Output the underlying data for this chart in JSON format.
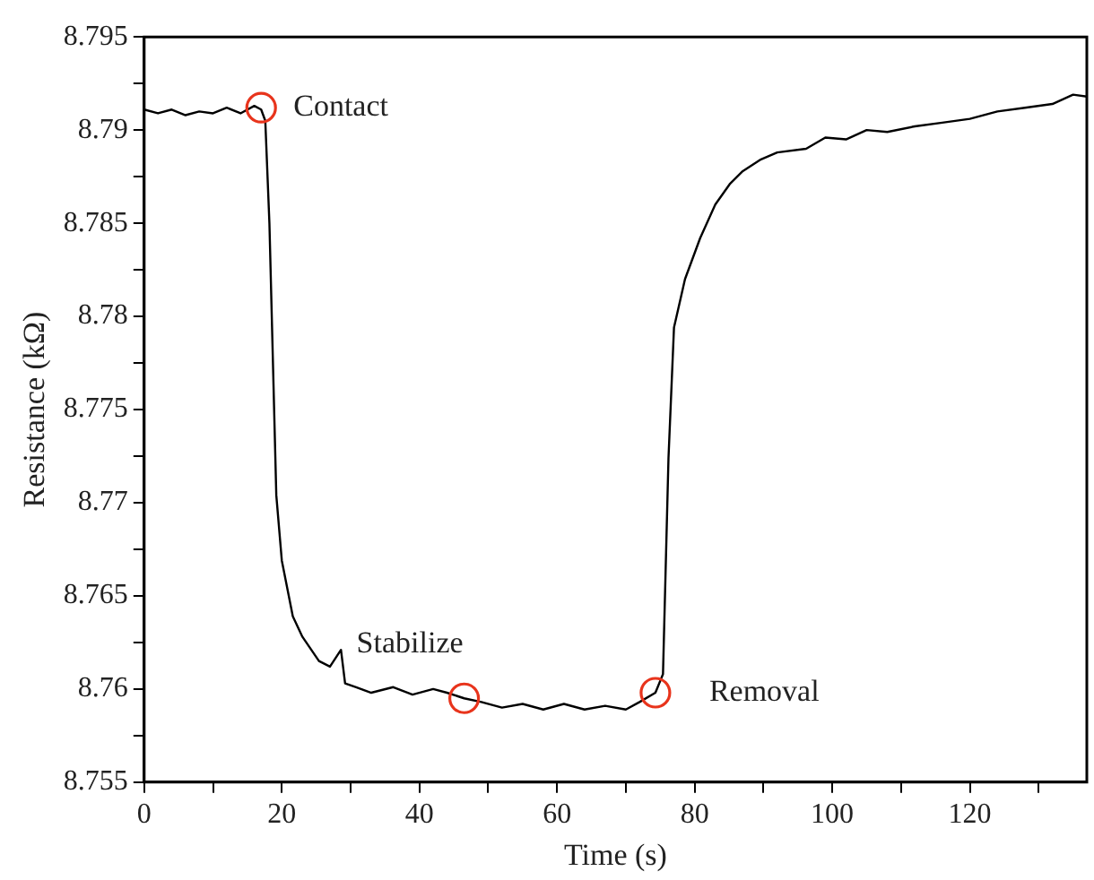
{
  "chart_data": {
    "type": "line",
    "xlabel": "Time (s)",
    "ylabel": "Resistance (kΩ)",
    "grid": false,
    "legend": false,
    "marker": "none",
    "line_style": "solid",
    "xlim": [
      0,
      137
    ],
    "ylim": [
      8.755,
      8.795
    ],
    "xticks": [
      0,
      {
        "value": 10,
        "label": null
      },
      20,
      {
        "value": 30,
        "label": null
      },
      40,
      {
        "value": 50,
        "label": null
      },
      60,
      {
        "value": 70,
        "label": null
      },
      80,
      {
        "value": 90,
        "label": null
      },
      100,
      {
        "value": 110,
        "label": null
      },
      120,
      {
        "value": 130,
        "label": null
      }
    ],
    "yticks": [
      8.755,
      {
        "value": 8.7575,
        "label": null
      },
      8.76,
      {
        "value": 8.7625,
        "label": null
      },
      8.765,
      {
        "value": 8.7675,
        "label": null
      },
      8.77,
      {
        "value": 8.7725,
        "label": null
      },
      8.775,
      {
        "value": 8.7775,
        "label": null
      },
      8.78,
      {
        "value": 8.7825,
        "label": null
      },
      8.785,
      {
        "value": 8.7875,
        "label": null
      },
      8.79,
      {
        "value": 8.7925,
        "label": null
      },
      8.795
    ],
    "series": [
      {
        "color": "#000000",
        "x": [
          0,
          2,
          4,
          6,
          8,
          10,
          12,
          14,
          16,
          17,
          17.6,
          18.2,
          19.2,
          20,
          21.6,
          23,
          25.4,
          27,
          28.6,
          29.2,
          30.8,
          33,
          36.2,
          39,
          42,
          44,
          46.5,
          49,
          52,
          55,
          58,
          61,
          64,
          67,
          70,
          72,
          74.3,
          75.4,
          76.2,
          77,
          78.6,
          80.8,
          83,
          85.1,
          87,
          89.5,
          92,
          96.2,
          99,
          102,
          105,
          108,
          112,
          116,
          120,
          124,
          128,
          132,
          135,
          137
        ],
        "values": [
          8.7911,
          8.7909,
          8.7911,
          8.7908,
          8.791,
          8.7909,
          8.7912,
          8.7909,
          8.7913,
          8.7911,
          8.7905,
          8.785,
          8.7704,
          8.7669,
          8.7639,
          8.7628,
          8.7615,
          8.7612,
          8.7621,
          8.7603,
          8.7601,
          8.7598,
          8.7601,
          8.7597,
          8.76,
          8.7598,
          8.7595,
          8.7593,
          8.759,
          8.7592,
          8.7589,
          8.7592,
          8.7589,
          8.7591,
          8.7589,
          8.7593,
          8.7598,
          8.7608,
          8.7724,
          8.7794,
          8.782,
          8.7842,
          8.786,
          8.7871,
          8.7878,
          8.7884,
          8.7888,
          8.789,
          8.7896,
          8.7895,
          8.79,
          8.7899,
          8.7902,
          8.7904,
          8.7906,
          8.791,
          8.7912,
          8.7914,
          8.7919,
          8.7918
        ]
      }
    ],
    "annotations": [
      {
        "text": "Contact",
        "x": 17,
        "y": 8.7912
      },
      {
        "text": "Stabilize",
        "x": 46.5,
        "y": 8.7595
      },
      {
        "text": "Removal",
        "x": 74.3,
        "y": 8.7598
      }
    ]
  }
}
